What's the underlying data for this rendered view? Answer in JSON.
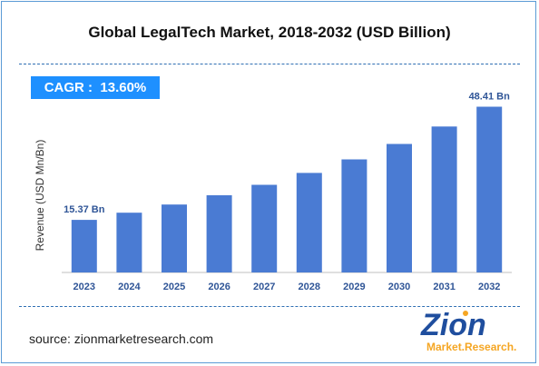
{
  "chart_data": {
    "type": "bar",
    "title": "Global LegalTech Market, 2018-2032 (USD Billion)",
    "ylabel": "Revenue (USD Mn/Bn)",
    "xlabel": "",
    "categories": [
      "2023",
      "2024",
      "2025",
      "2026",
      "2027",
      "2028",
      "2029",
      "2030",
      "2031",
      "2032"
    ],
    "values": [
      15.37,
      17.46,
      19.84,
      22.54,
      25.6,
      29.08,
      33.04,
      37.53,
      42.63,
      48.41
    ],
    "data_labels": [
      {
        "category": "2023",
        "text": "15.37 Bn"
      },
      {
        "category": "2032",
        "text": "48.41 Bn"
      }
    ],
    "ylim": [
      0,
      52
    ],
    "grid": false,
    "bar_color": "#4a7bd3",
    "label_color": "#2f5597"
  },
  "annotation": {
    "cagr": "CAGR :  13.60%"
  },
  "footer": {
    "source": "source: zionmarketresearch.com"
  },
  "logo": {
    "text_main": "Zion",
    "text_sub": "Market.Research."
  }
}
